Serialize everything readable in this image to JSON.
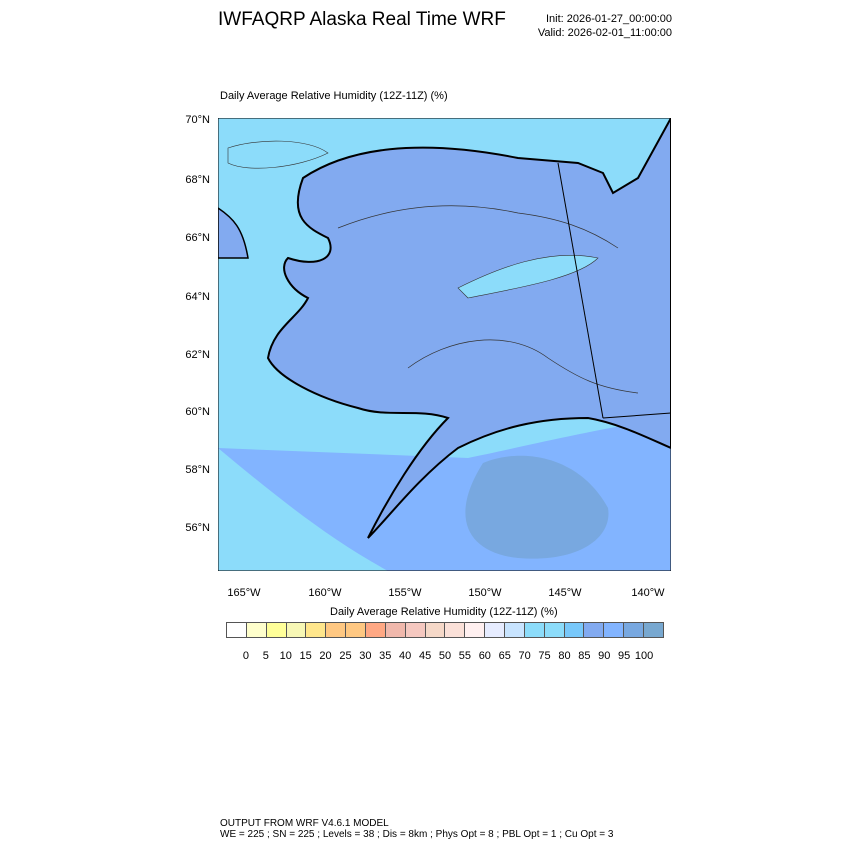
{
  "header": {
    "title": "IWFAQRP Alaska Real Time WRF",
    "init": "Init: 2026-01-27_00:00:00",
    "valid": "Valid: 2026-02-01_11:00:00"
  },
  "plot": {
    "subtitle": "Daily Average Relative Humidity (12Z-11Z)   (%)",
    "lat_labels": [
      "70°N",
      "68°N",
      "66°N",
      "64°N",
      "62°N",
      "60°N",
      "58°N",
      "56°N"
    ],
    "lon_labels": [
      "165°W",
      "160°W",
      "155°W",
      "150°W",
      "145°W",
      "140°W"
    ]
  },
  "legend": {
    "title": "Daily Average Relative Humidity (12Z-11Z)  (%)",
    "labels": [
      "0",
      "5",
      "10",
      "15",
      "20",
      "25",
      "30",
      "35",
      "40",
      "45",
      "50",
      "55",
      "60",
      "65",
      "70",
      "75",
      "80",
      "85",
      "90",
      "95",
      "100"
    ],
    "colors": [
      "#ffffff",
      "#ffffcc",
      "#ffff99",
      "#f7f7b5",
      "#ffe68c",
      "#ffc882",
      "#ffc882",
      "#ffa884",
      "#f0b8ac",
      "#f5c8c0",
      "#f5d8c8",
      "#fae0d8",
      "#fff0f0",
      "#e6ecff",
      "#c8e4ff",
      "#8cdcfa",
      "#8cdcfa",
      "#78c8fa",
      "#82aaf0",
      "#82b4ff",
      "#78a8e0",
      "#78a8d0"
    ]
  },
  "footer": {
    "line1": "OUTPUT FROM WRF V4.6.1 MODEL",
    "line2": "WE = 225 ; SN = 225 ; Levels = 38 ; Dis = 8km ; Phys Opt = 8 ; PBL Opt = 1 ; Cu Opt = 3"
  }
}
